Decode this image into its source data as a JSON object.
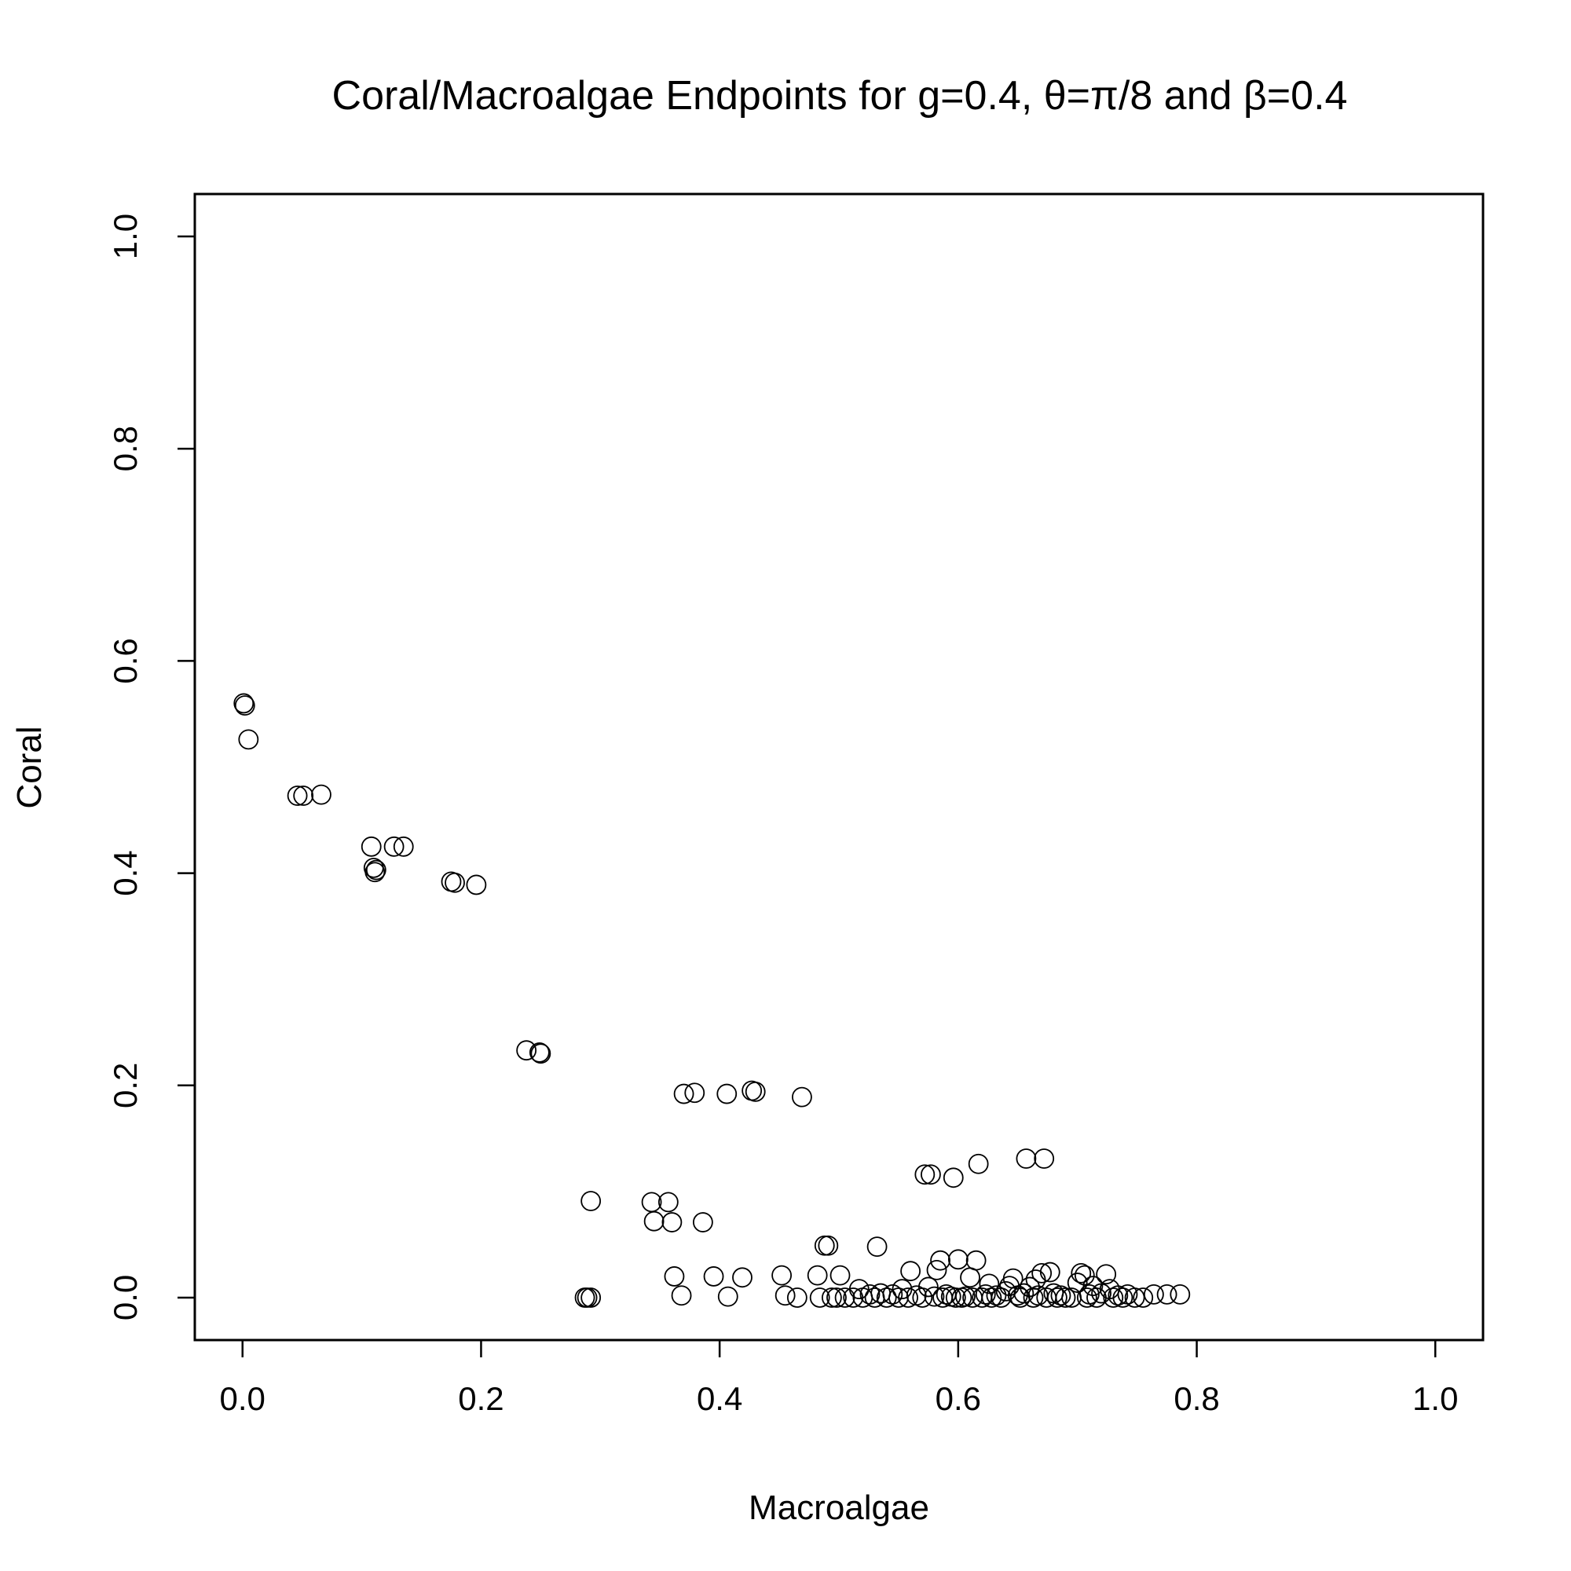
{
  "chart_data": {
    "type": "scatter",
    "title": "Coral/Macroalgae Endpoints for g=0.4, θ=π/8 and β=0.4",
    "xlabel": "Macroalgae",
    "ylabel": "Coral",
    "xlim": [
      -0.04,
      1.04
    ],
    "ylim": [
      -0.04,
      1.04
    ],
    "x_ticks": [
      0.0,
      0.2,
      0.4,
      0.6,
      0.8,
      1.0
    ],
    "y_ticks": [
      0.0,
      0.2,
      0.4,
      0.6,
      0.8,
      1.0
    ],
    "x_tick_labels": [
      "0.0",
      "0.2",
      "0.4",
      "0.6",
      "0.8",
      "1.0"
    ],
    "y_tick_labels": [
      "0.0",
      "0.2",
      "0.4",
      "0.6",
      "0.8",
      "1.0"
    ],
    "grid": false,
    "marker": "open-circle",
    "points": [
      [
        0.001,
        0.56
      ],
      [
        0.002,
        0.558
      ],
      [
        0.005,
        0.526
      ],
      [
        0.046,
        0.473
      ],
      [
        0.051,
        0.473
      ],
      [
        0.066,
        0.474
      ],
      [
        0.108,
        0.425
      ],
      [
        0.11,
        0.405
      ],
      [
        0.111,
        0.401
      ],
      [
        0.112,
        0.403
      ],
      [
        0.127,
        0.425
      ],
      [
        0.135,
        0.425
      ],
      [
        0.175,
        0.392
      ],
      [
        0.178,
        0.391
      ],
      [
        0.196,
        0.389
      ],
      [
        0.238,
        0.233
      ],
      [
        0.249,
        0.231
      ],
      [
        0.25,
        0.23
      ],
      [
        0.287,
        0.0
      ],
      [
        0.289,
        0.0
      ],
      [
        0.292,
        0.0
      ],
      [
        0.292,
        0.091
      ],
      [
        0.343,
        0.09
      ],
      [
        0.345,
        0.072
      ],
      [
        0.357,
        0.09
      ],
      [
        0.36,
        0.071
      ],
      [
        0.362,
        0.02
      ],
      [
        0.368,
        0.002
      ],
      [
        0.37,
        0.192
      ],
      [
        0.379,
        0.193
      ],
      [
        0.386,
        0.071
      ],
      [
        0.395,
        0.02
      ],
      [
        0.406,
        0.192
      ],
      [
        0.407,
        0.001
      ],
      [
        0.419,
        0.019
      ],
      [
        0.427,
        0.195
      ],
      [
        0.43,
        0.194
      ],
      [
        0.452,
        0.021
      ],
      [
        0.455,
        0.002
      ],
      [
        0.465,
        0.0
      ],
      [
        0.469,
        0.189
      ],
      [
        0.482,
        0.021
      ],
      [
        0.484,
        0.0
      ],
      [
        0.488,
        0.049
      ],
      [
        0.491,
        0.049
      ],
      [
        0.494,
        0.0
      ],
      [
        0.498,
        0.0
      ],
      [
        0.501,
        0.021
      ],
      [
        0.505,
        0.0
      ],
      [
        0.512,
        0.0
      ],
      [
        0.517,
        0.008
      ],
      [
        0.52,
        0.0
      ],
      [
        0.526,
        0.003
      ],
      [
        0.53,
        0.0
      ],
      [
        0.532,
        0.048
      ],
      [
        0.535,
        0.004
      ],
      [
        0.54,
        0.0
      ],
      [
        0.545,
        0.003
      ],
      [
        0.55,
        0.0
      ],
      [
        0.553,
        0.008
      ],
      [
        0.558,
        0.0
      ],
      [
        0.56,
        0.025
      ],
      [
        0.565,
        0.002
      ],
      [
        0.57,
        0.0
      ],
      [
        0.572,
        0.116
      ],
      [
        0.575,
        0.01
      ],
      [
        0.577,
        0.116
      ],
      [
        0.58,
        0.001
      ],
      [
        0.582,
        0.026
      ],
      [
        0.585,
        0.035
      ],
      [
        0.587,
        0.0
      ],
      [
        0.59,
        0.003
      ],
      [
        0.594,
        0.001
      ],
      [
        0.596,
        0.113
      ],
      [
        0.598,
        0.0
      ],
      [
        0.6,
        0.036
      ],
      [
        0.603,
        0.0
      ],
      [
        0.606,
        0.001
      ],
      [
        0.61,
        0.019
      ],
      [
        0.612,
        0.0
      ],
      [
        0.615,
        0.035
      ],
      [
        0.617,
        0.126
      ],
      [
        0.62,
        0.0
      ],
      [
        0.623,
        0.003
      ],
      [
        0.626,
        0.013
      ],
      [
        0.628,
        0.0
      ],
      [
        0.632,
        0.002
      ],
      [
        0.636,
        0.0
      ],
      [
        0.64,
        0.006
      ],
      [
        0.643,
        0.011
      ],
      [
        0.646,
        0.018
      ],
      [
        0.65,
        0.002
      ],
      [
        0.652,
        0.0
      ],
      [
        0.655,
        0.004
      ],
      [
        0.657,
        0.131
      ],
      [
        0.66,
        0.01
      ],
      [
        0.663,
        0.0
      ],
      [
        0.665,
        0.017
      ],
      [
        0.667,
        0.002
      ],
      [
        0.67,
        0.023
      ],
      [
        0.672,
        0.131
      ],
      [
        0.674,
        0.0
      ],
      [
        0.677,
        0.024
      ],
      [
        0.68,
        0.004
      ],
      [
        0.683,
        0.0
      ],
      [
        0.686,
        0.002
      ],
      [
        0.69,
        0.0
      ],
      [
        0.695,
        0.0
      ],
      [
        0.7,
        0.014
      ],
      [
        0.703,
        0.023
      ],
      [
        0.706,
        0.021
      ],
      [
        0.708,
        0.0
      ],
      [
        0.71,
        0.003
      ],
      [
        0.713,
        0.011
      ],
      [
        0.716,
        0.0
      ],
      [
        0.72,
        0.004
      ],
      [
        0.724,
        0.022
      ],
      [
        0.727,
        0.008
      ],
      [
        0.73,
        0.0
      ],
      [
        0.734,
        0.002
      ],
      [
        0.738,
        0.0
      ],
      [
        0.742,
        0.003
      ],
      [
        0.748,
        0.0
      ],
      [
        0.755,
        0.0
      ],
      [
        0.764,
        0.003
      ],
      [
        0.775,
        0.003
      ],
      [
        0.786,
        0.003
      ]
    ]
  }
}
